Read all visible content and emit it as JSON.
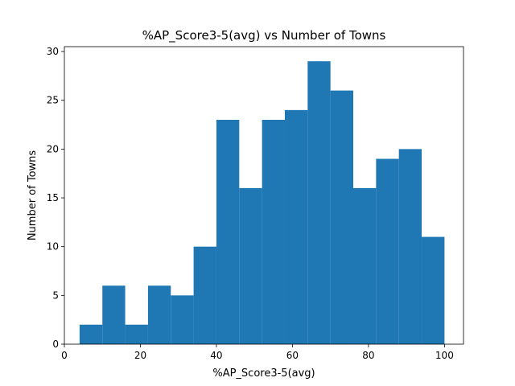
{
  "chart_data": {
    "type": "bar",
    "subtype": "histogram",
    "title": "%AP_Score3-5(avg) vs Number of Towns",
    "xlabel": "%AP_Score3-5(avg)",
    "ylabel": "Number of Towns",
    "bin_edges": [
      4.0,
      10.0,
      16.0,
      22.0,
      28.0,
      34.0,
      40.0,
      46.0,
      52.0,
      58.0,
      64.0,
      70.0,
      76.0,
      82.0,
      88.0,
      94.0,
      100.0
    ],
    "values": [
      2,
      6,
      2,
      6,
      5,
      10,
      23,
      16,
      23,
      24,
      29,
      26,
      16,
      19,
      20,
      11
    ],
    "xlim": [
      0,
      105
    ],
    "ylim": [
      0,
      30.5
    ],
    "xticks": [
      0,
      20,
      40,
      60,
      80,
      100
    ],
    "yticks": [
      0,
      5,
      10,
      15,
      20,
      25,
      30
    ],
    "bar_color": "#1f77b4",
    "grid": false,
    "legend": "none"
  }
}
